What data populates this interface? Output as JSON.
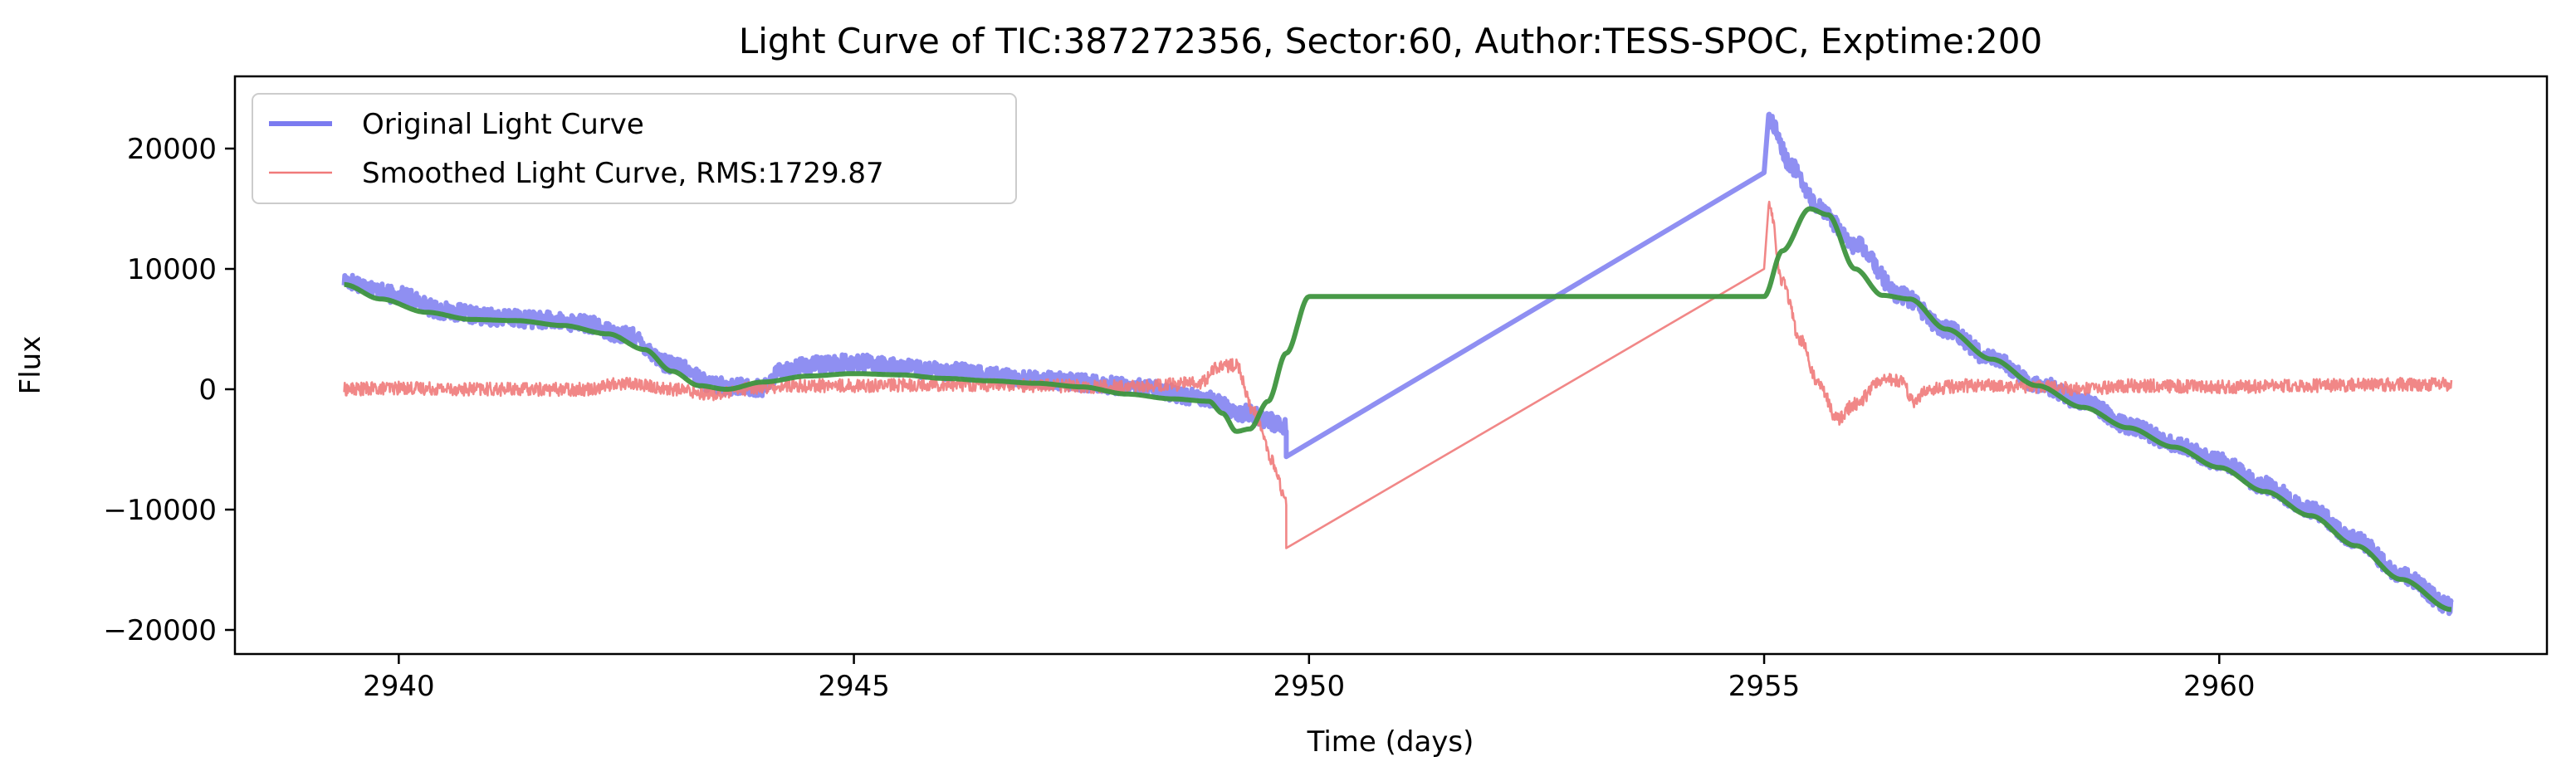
{
  "chart_data": {
    "type": "line",
    "title": "Light Curve of TIC:387272356, Sector:60, Author:TESS-SPOC, Exptime:200",
    "xlabel": "Time (days)",
    "ylabel": "Flux",
    "xlim": [
      2938.2,
      2963.6
    ],
    "ylim": [
      -22000,
      26000
    ],
    "xticks": [
      2940,
      2945,
      2950,
      2955,
      2960
    ],
    "yticks": [
      -20000,
      -10000,
      0,
      10000,
      20000
    ],
    "xtick_labels": [
      "2940",
      "2945",
      "2950",
      "2955",
      "2960"
    ],
    "ytick_labels": [
      "−20000",
      "−10000",
      "0",
      "10000",
      "20000"
    ],
    "grid": false,
    "legend_position": "top-left",
    "series": [
      {
        "name": "Original Light Curve",
        "color": "#7b7bf0",
        "noise": 700,
        "anchors": [
          [
            2939.4,
            9000
          ],
          [
            2940.0,
            7800
          ],
          [
            2940.5,
            6500
          ],
          [
            2941.0,
            6000
          ],
          [
            2941.5,
            5800
          ],
          [
            2942.0,
            5500
          ],
          [
            2942.5,
            4500
          ],
          [
            2943.0,
            2000
          ],
          [
            2943.5,
            300
          ],
          [
            2944.0,
            100
          ],
          [
            2944.2,
            1500
          ],
          [
            2944.5,
            2000
          ],
          [
            2945.0,
            2200
          ],
          [
            2946.0,
            1500
          ],
          [
            2947.0,
            800
          ],
          [
            2948.0,
            300
          ],
          [
            2948.8,
            -600
          ],
          [
            2949.3,
            -2000
          ],
          [
            2949.75,
            -3000
          ]
        ],
        "gap": [
          [
            2949.75,
            -5600
          ],
          [
            2955.0,
            18000
          ]
        ],
        "anchors_after": [
          [
            2955.05,
            22500
          ],
          [
            2955.3,
            18500
          ],
          [
            2955.6,
            15000
          ],
          [
            2956.0,
            12000
          ],
          [
            2956.5,
            7800
          ],
          [
            2957.0,
            5000
          ],
          [
            2957.5,
            2500
          ],
          [
            2958.0,
            500
          ],
          [
            2958.5,
            -1000
          ],
          [
            2959.0,
            -3000
          ],
          [
            2959.5,
            -4500
          ],
          [
            2960.0,
            -6000
          ],
          [
            2960.5,
            -8000
          ],
          [
            2961.0,
            -10000
          ],
          [
            2961.5,
            -12500
          ],
          [
            2962.0,
            -15500
          ],
          [
            2962.55,
            -18000
          ]
        ]
      },
      {
        "name": "Smoothed Light Curve, RMS:1729.87",
        "color": "#f07a7a",
        "noise": 550,
        "anchors": [
          [
            2939.4,
            0
          ],
          [
            2940.0,
            100
          ],
          [
            2941.0,
            0
          ],
          [
            2942.0,
            0
          ],
          [
            2942.5,
            500
          ],
          [
            2943.0,
            0
          ],
          [
            2943.5,
            -400
          ],
          [
            2944.0,
            200
          ],
          [
            2944.5,
            300
          ],
          [
            2945.0,
            300
          ],
          [
            2946.0,
            400
          ],
          [
            2947.0,
            300
          ],
          [
            2948.0,
            200
          ],
          [
            2948.8,
            500
          ],
          [
            2949.0,
            1800
          ],
          [
            2949.2,
            2000
          ],
          [
            2949.4,
            -2000
          ],
          [
            2949.6,
            -6000
          ],
          [
            2949.75,
            -9500
          ]
        ],
        "gap": [
          [
            2949.75,
            -13200
          ],
          [
            2955.0,
            10000
          ]
        ],
        "anchors_after": [
          [
            2955.05,
            15500
          ],
          [
            2955.2,
            9000
          ],
          [
            2955.4,
            4000
          ],
          [
            2955.6,
            500
          ],
          [
            2955.8,
            -2500
          ],
          [
            2956.0,
            -1200
          ],
          [
            2956.3,
            800
          ],
          [
            2956.5,
            700
          ],
          [
            2956.65,
            -1000
          ],
          [
            2956.8,
            0
          ],
          [
            2957.2,
            300
          ],
          [
            2958.0,
            200
          ],
          [
            2958.5,
            0
          ],
          [
            2959.0,
            300
          ],
          [
            2960.0,
            200
          ],
          [
            2961.0,
            300
          ],
          [
            2962.0,
            400
          ],
          [
            2962.55,
            400
          ]
        ]
      },
      {
        "name": "",
        "color": "#3e953e",
        "noise": 0,
        "anchors": [
          [
            2939.4,
            8700
          ],
          [
            2939.8,
            7500
          ],
          [
            2940.3,
            6400
          ],
          [
            2940.8,
            5800
          ],
          [
            2941.3,
            5700
          ],
          [
            2941.8,
            5300
          ],
          [
            2942.3,
            4600
          ],
          [
            2942.7,
            3300
          ],
          [
            2943.0,
            1500
          ],
          [
            2943.3,
            300
          ],
          [
            2943.6,
            0
          ],
          [
            2944.0,
            600
          ],
          [
            2944.5,
            1100
          ],
          [
            2945.0,
            1300
          ],
          [
            2945.5,
            1200
          ],
          [
            2946.0,
            900
          ],
          [
            2946.5,
            700
          ],
          [
            2947.0,
            500
          ],
          [
            2947.5,
            200
          ],
          [
            2948.0,
            -400
          ],
          [
            2948.5,
            -800
          ],
          [
            2948.9,
            -1000
          ],
          [
            2949.05,
            -2000
          ],
          [
            2949.2,
            -3500
          ],
          [
            2949.35,
            -3300
          ],
          [
            2949.55,
            -1000
          ],
          [
            2949.75,
            3000
          ],
          [
            2950.0,
            7700
          ],
          [
            2955.0,
            7700
          ],
          [
            2955.2,
            11500
          ],
          [
            2955.5,
            15000
          ],
          [
            2955.7,
            14500
          ],
          [
            2956.0,
            10000
          ],
          [
            2956.3,
            7800
          ],
          [
            2956.6,
            7500
          ],
          [
            2957.0,
            5000
          ],
          [
            2957.5,
            2500
          ],
          [
            2958.0,
            300
          ],
          [
            2958.5,
            -1500
          ],
          [
            2959.0,
            -3200
          ],
          [
            2959.5,
            -4800
          ],
          [
            2960.0,
            -6500
          ],
          [
            2960.5,
            -8500
          ],
          [
            2961.0,
            -10500
          ],
          [
            2961.5,
            -13000
          ],
          [
            2962.0,
            -15800
          ],
          [
            2962.55,
            -18300
          ]
        ]
      }
    ]
  }
}
